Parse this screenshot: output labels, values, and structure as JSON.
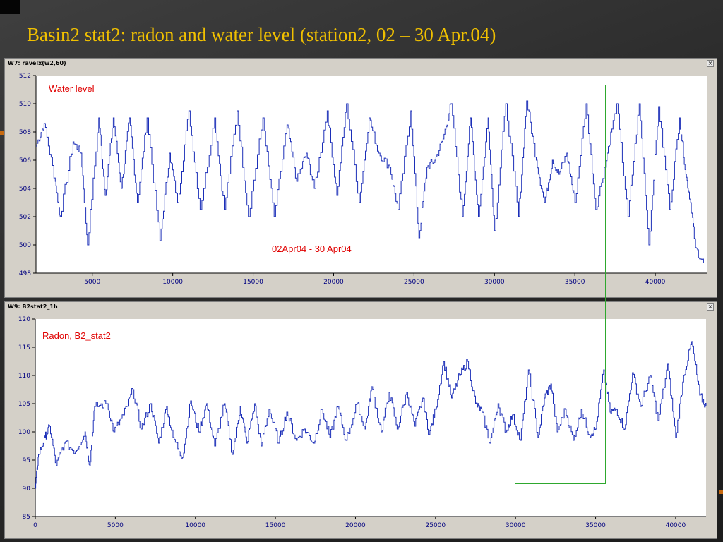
{
  "slide": {
    "title": "Basin2 stat2: radon and water level (station2, 02 – 30 Apr.04)"
  },
  "colors": {
    "title": "#f0c000",
    "series_line": "#1c2fb8",
    "label": "#e00000",
    "highlight": "#2ea82e",
    "plot_bg": "#ffffff",
    "window_bg": "#d4d0c8",
    "tick_text": "#000080"
  },
  "windows": {
    "water": {
      "title": "W7: ravelx(w2,60)",
      "close_glyph": "×"
    },
    "radon": {
      "title": "W9: B2stat2_1h",
      "close_glyph": "×"
    }
  },
  "chart_data": [
    {
      "type": "line",
      "id": "water",
      "title": "Water level",
      "annotation": "02Apr04 - 30 Apr04",
      "xlim": [
        1500,
        43200
      ],
      "ylim": [
        498,
        512
      ],
      "x_ticks": [
        5000,
        10000,
        15000,
        20000,
        25000,
        30000,
        35000,
        40000
      ],
      "y_ticks": [
        498,
        500,
        502,
        504,
        506,
        508,
        510,
        512
      ],
      "grid": false,
      "series": [
        {
          "values": [
            [
              1500,
              507.0
            ],
            [
              2000,
              508.6
            ],
            [
              2700,
              504.5
            ],
            [
              3000,
              502.0
            ],
            [
              3800,
              507.3
            ],
            [
              4300,
              506.5
            ],
            [
              4700,
              500.0
            ],
            [
              5400,
              509.0
            ],
            [
              5800,
              503.5
            ],
            [
              6300,
              509.0
            ],
            [
              6800,
              504.0
            ],
            [
              7300,
              509.0
            ],
            [
              7800,
              503.0
            ],
            [
              8400,
              509.0
            ],
            [
              9200,
              500.3
            ],
            [
              9800,
              506.5
            ],
            [
              10300,
              503.0
            ],
            [
              11000,
              509.5
            ],
            [
              11700,
              502.5
            ],
            [
              12600,
              509.0
            ],
            [
              13200,
              502.5
            ],
            [
              14000,
              509.5
            ],
            [
              14700,
              502.0
            ],
            [
              15600,
              509.0
            ],
            [
              16300,
              502.0
            ],
            [
              17100,
              508.5
            ],
            [
              17700,
              504.5
            ],
            [
              18300,
              506.5
            ],
            [
              18800,
              504.0
            ],
            [
              19600,
              509.5
            ],
            [
              20200,
              503.5
            ],
            [
              20800,
              510.0
            ],
            [
              21600,
              503.0
            ],
            [
              22200,
              509.0
            ],
            [
              22800,
              506.5
            ],
            [
              23500,
              505.5
            ],
            [
              24000,
              502.5
            ],
            [
              24800,
              509.5
            ],
            [
              25300,
              500.5
            ],
            [
              25800,
              505.5
            ],
            [
              26300,
              506.0
            ],
            [
              26800,
              507.5
            ],
            [
              27300,
              510.0
            ],
            [
              28000,
              502.0
            ],
            [
              28500,
              509.0
            ],
            [
              29000,
              502.0
            ],
            [
              29600,
              509.0
            ],
            [
              30000,
              501.0
            ],
            [
              30700,
              510.0
            ],
            [
              31500,
              502.0
            ],
            [
              32000,
              510.2
            ],
            [
              32600,
              506.0
            ],
            [
              33100,
              503.0
            ],
            [
              33600,
              506.0
            ],
            [
              34000,
              505.0
            ],
            [
              34500,
              506.5
            ],
            [
              35000,
              503.0
            ],
            [
              35700,
              510.0
            ],
            [
              36300,
              502.5
            ],
            [
              37000,
              506.5
            ],
            [
              37600,
              510.0
            ],
            [
              38300,
              502.0
            ],
            [
              39000,
              510.0
            ],
            [
              39600,
              500.0
            ],
            [
              40200,
              509.8
            ],
            [
              40900,
              502.5
            ],
            [
              41500,
              509.0
            ],
            [
              41900,
              505.0
            ],
            [
              42200,
              503.0
            ],
            [
              42500,
              499.8
            ],
            [
              43000,
              498.7
            ]
          ]
        }
      ]
    },
    {
      "type": "line",
      "id": "radon",
      "title": "Radon, B2_stat2",
      "xlim": [
        0,
        41900
      ],
      "ylim": [
        85,
        120
      ],
      "x_ticks": [
        0,
        5000,
        10000,
        15000,
        20000,
        25000,
        30000,
        35000,
        40000
      ],
      "y_ticks": [
        85,
        90,
        95,
        100,
        105,
        110,
        115,
        120
      ],
      "grid": false,
      "series": [
        {
          "values": [
            [
              0,
              90.0
            ],
            [
              200,
              96.0
            ],
            [
              600,
              99.0
            ],
            [
              900,
              101.0
            ],
            [
              1300,
              94.0
            ],
            [
              1800,
              98.0
            ],
            [
              2500,
              96.5
            ],
            [
              3100,
              100.0
            ],
            [
              3400,
              94.0
            ],
            [
              3700,
              104.5
            ],
            [
              4500,
              105.0
            ],
            [
              4900,
              100.0
            ],
            [
              5500,
              103.0
            ],
            [
              6100,
              107.5
            ],
            [
              6600,
              100.5
            ],
            [
              7200,
              105.0
            ],
            [
              7700,
              98.0
            ],
            [
              8200,
              104.5
            ],
            [
              8600,
              99.0
            ],
            [
              9200,
              95.5
            ],
            [
              9700,
              105.5
            ],
            [
              10200,
              100.0
            ],
            [
              10700,
              105.0
            ],
            [
              11200,
              97.5
            ],
            [
              11800,
              105.0
            ],
            [
              12300,
              96.0
            ],
            [
              12800,
              104.5
            ],
            [
              13200,
              98.0
            ],
            [
              13700,
              105.0
            ],
            [
              14100,
              97.5
            ],
            [
              14600,
              104.0
            ],
            [
              15200,
              98.0
            ],
            [
              15700,
              103.5
            ],
            [
              16300,
              98.5
            ],
            [
              16800,
              100.5
            ],
            [
              17400,
              98.0
            ],
            [
              17900,
              104.0
            ],
            [
              18400,
              99.0
            ],
            [
              18900,
              104.5
            ],
            [
              19400,
              98.5
            ],
            [
              20100,
              105.0
            ],
            [
              20600,
              100.5
            ],
            [
              21000,
              108.0
            ],
            [
              21600,
              100.0
            ],
            [
              22100,
              107.0
            ],
            [
              22600,
              100.5
            ],
            [
              23200,
              107.0
            ],
            [
              23700,
              101.0
            ],
            [
              24200,
              106.0
            ],
            [
              24600,
              99.5
            ],
            [
              25000,
              104.0
            ],
            [
              25500,
              112.5
            ],
            [
              26000,
              106.0
            ],
            [
              26500,
              110.0
            ],
            [
              27000,
              112.5
            ],
            [
              27500,
              105.0
            ],
            [
              27900,
              103.5
            ],
            [
              28400,
              98.0
            ],
            [
              28900,
              105.0
            ],
            [
              29400,
              100.0
            ],
            [
              29800,
              103.0
            ],
            [
              30300,
              98.5
            ],
            [
              30800,
              111.0
            ],
            [
              31400,
              99.0
            ],
            [
              31800,
              106.0
            ],
            [
              32200,
              108.5
            ],
            [
              32600,
              100.0
            ],
            [
              33100,
              104.0
            ],
            [
              33600,
              98.5
            ],
            [
              34100,
              104.0
            ],
            [
              34600,
              99.5
            ],
            [
              35000,
              100.5
            ],
            [
              35500,
              111.0
            ],
            [
              35900,
              103.5
            ],
            [
              36300,
              104.0
            ],
            [
              36800,
              100.5
            ],
            [
              37300,
              110.5
            ],
            [
              37800,
              104.5
            ],
            [
              38400,
              110.0
            ],
            [
              38900,
              102.0
            ],
            [
              39500,
              112.0
            ],
            [
              40000,
              99.0
            ],
            [
              40500,
              110.0
            ],
            [
              41000,
              116.0
            ],
            [
              41500,
              106.5
            ],
            [
              41900,
              104.5
            ]
          ]
        }
      ]
    }
  ]
}
